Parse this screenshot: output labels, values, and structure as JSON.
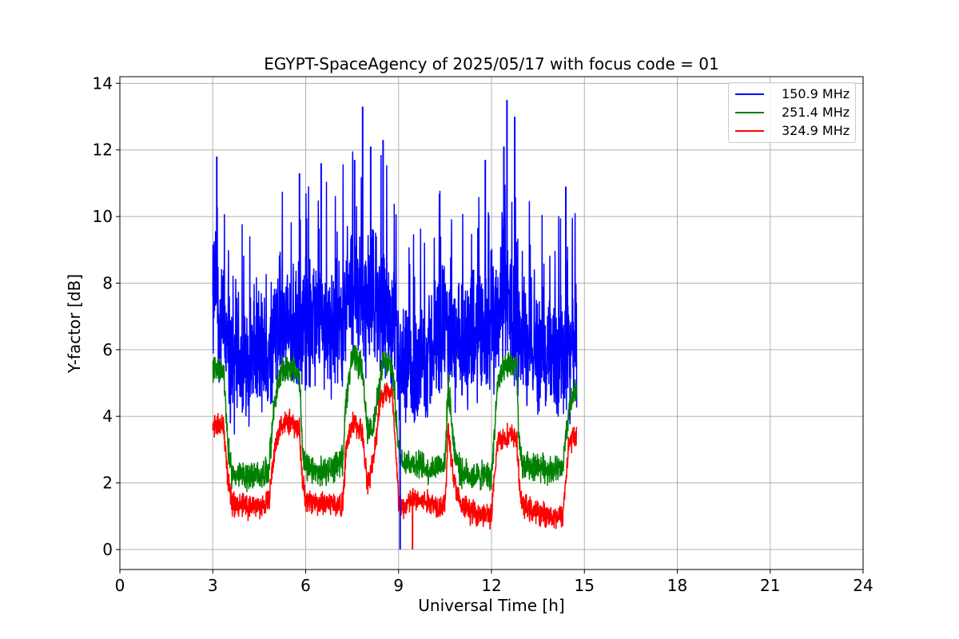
{
  "chart_data": {
    "type": "line",
    "title": "EGYPT-SpaceAgency of 2025/05/17 with focus code = 01",
    "xlabel": "Universal Time [h]",
    "ylabel": "Y-factor [dB]",
    "xlim": [
      0,
      24
    ],
    "ylim": [
      -0.6,
      14.2
    ],
    "xticks": [
      0,
      3,
      6,
      9,
      12,
      15,
      18,
      21,
      24
    ],
    "yticks": [
      0,
      2,
      4,
      6,
      8,
      10,
      12,
      14
    ],
    "grid": true,
    "legend_position": "top-right",
    "series": [
      {
        "name": "150.9 MHz",
        "color": "#0000ff",
        "spread": 1.6,
        "x": [
          3.0,
          3.1,
          3.2,
          3.4,
          3.6,
          3.8,
          4.0,
          4.2,
          4.5,
          4.8,
          5.0,
          5.3,
          5.6,
          5.9,
          6.2,
          6.6,
          7.0,
          7.3,
          7.6,
          8.0,
          8.3,
          8.6,
          8.9,
          9.0,
          9.2,
          9.5,
          9.8,
          10.1,
          10.4,
          10.8,
          11.2,
          11.6,
          12.0,
          12.3,
          12.6,
          13.0,
          13.4,
          13.8,
          14.2,
          14.5,
          14.75
        ],
        "y": [
          7.2,
          8.2,
          6.8,
          6.5,
          5.5,
          5.8,
          5.4,
          5.9,
          6.0,
          5.6,
          6.5,
          6.9,
          6.4,
          6.6,
          6.9,
          6.8,
          6.4,
          7.4,
          7.9,
          7.3,
          7.5,
          7.2,
          6.0,
          5.5,
          5.0,
          5.6,
          5.7,
          6.0,
          6.8,
          6.0,
          6.1,
          6.3,
          6.8,
          7.5,
          7.2,
          6.4,
          6.0,
          5.6,
          5.9,
          6.1,
          6.2
        ]
      },
      {
        "name": "251.4 MHz",
        "color": "#008000",
        "spread": 0.35,
        "x": [
          3.0,
          3.35,
          3.5,
          3.6,
          4.0,
          4.5,
          4.8,
          5.0,
          5.2,
          5.5,
          5.8,
          5.9,
          6.0,
          6.4,
          6.8,
          7.2,
          7.3,
          7.5,
          7.8,
          8.0,
          8.2,
          8.5,
          8.8,
          9.0,
          9.1,
          9.5,
          10.0,
          10.5,
          10.6,
          10.8,
          11.0,
          11.5,
          12.0,
          12.2,
          12.5,
          12.8,
          12.9,
          13.0,
          13.5,
          14.0,
          14.3,
          14.5,
          14.75
        ],
        "y": [
          5.5,
          5.4,
          3.0,
          2.3,
          2.2,
          2.2,
          2.4,
          4.5,
          5.3,
          5.5,
          5.2,
          3.0,
          2.4,
          2.3,
          2.4,
          2.7,
          4.5,
          5.8,
          5.5,
          3.5,
          3.8,
          5.6,
          5.5,
          3.0,
          2.7,
          2.6,
          2.4,
          2.6,
          5.0,
          3.0,
          2.3,
          2.2,
          2.2,
          5.0,
          5.5,
          5.6,
          3.0,
          2.5,
          2.5,
          2.4,
          2.4,
          4.2,
          4.8
        ]
      },
      {
        "name": "324.9 MHz",
        "color": "#ff0000",
        "spread": 0.3,
        "x": [
          3.0,
          3.35,
          3.5,
          3.6,
          4.0,
          4.5,
          4.8,
          5.0,
          5.2,
          5.5,
          5.8,
          5.9,
          6.0,
          6.4,
          6.8,
          7.2,
          7.3,
          7.5,
          7.8,
          8.0,
          8.2,
          8.4,
          8.6,
          8.8,
          8.9,
          9.0,
          9.1,
          9.3,
          9.5,
          10.0,
          10.5,
          10.6,
          10.8,
          11.0,
          11.5,
          12.0,
          12.2,
          12.5,
          12.8,
          12.9,
          13.0,
          13.5,
          14.0,
          14.3,
          14.5,
          14.75
        ],
        "y": [
          3.8,
          3.7,
          2.0,
          1.4,
          1.3,
          1.3,
          1.4,
          3.0,
          3.8,
          3.8,
          3.6,
          2.0,
          1.5,
          1.4,
          1.4,
          1.3,
          3.0,
          3.8,
          3.6,
          2.0,
          2.7,
          4.5,
          4.8,
          4.6,
          3.0,
          1.5,
          1.2,
          1.4,
          1.5,
          1.4,
          1.3,
          3.6,
          2.0,
          1.3,
          1.1,
          1.0,
          3.3,
          3.4,
          3.4,
          2.0,
          1.3,
          1.1,
          1.0,
          1.0,
          3.2,
          3.5
        ]
      }
    ],
    "spikes": [
      {
        "series": "150.9 MHz",
        "x": 3.13,
        "y": 11.8
      },
      {
        "series": "150.9 MHz",
        "x": 5.8,
        "y": 11.3
      },
      {
        "series": "150.9 MHz",
        "x": 6.5,
        "y": 11.6
      },
      {
        "series": "150.9 MHz",
        "x": 7.58,
        "y": 11.7
      },
      {
        "series": "150.9 MHz",
        "x": 7.84,
        "y": 13.3
      },
      {
        "series": "150.9 MHz",
        "x": 8.1,
        "y": 12.1
      },
      {
        "series": "150.9 MHz",
        "x": 8.5,
        "y": 12.3
      },
      {
        "series": "150.9 MHz",
        "x": 9.05,
        "y": 0.0
      },
      {
        "series": "150.9 MHz",
        "x": 11.8,
        "y": 11.7
      },
      {
        "series": "150.9 MHz",
        "x": 12.4,
        "y": 12.1
      },
      {
        "series": "150.9 MHz",
        "x": 12.5,
        "y": 13.5
      },
      {
        "series": "150.9 MHz",
        "x": 12.75,
        "y": 13.0
      },
      {
        "series": "150.9 MHz",
        "x": 14.4,
        "y": 10.9
      },
      {
        "series": "324.9 MHz",
        "x": 9.45,
        "y": 0.0
      }
    ]
  }
}
